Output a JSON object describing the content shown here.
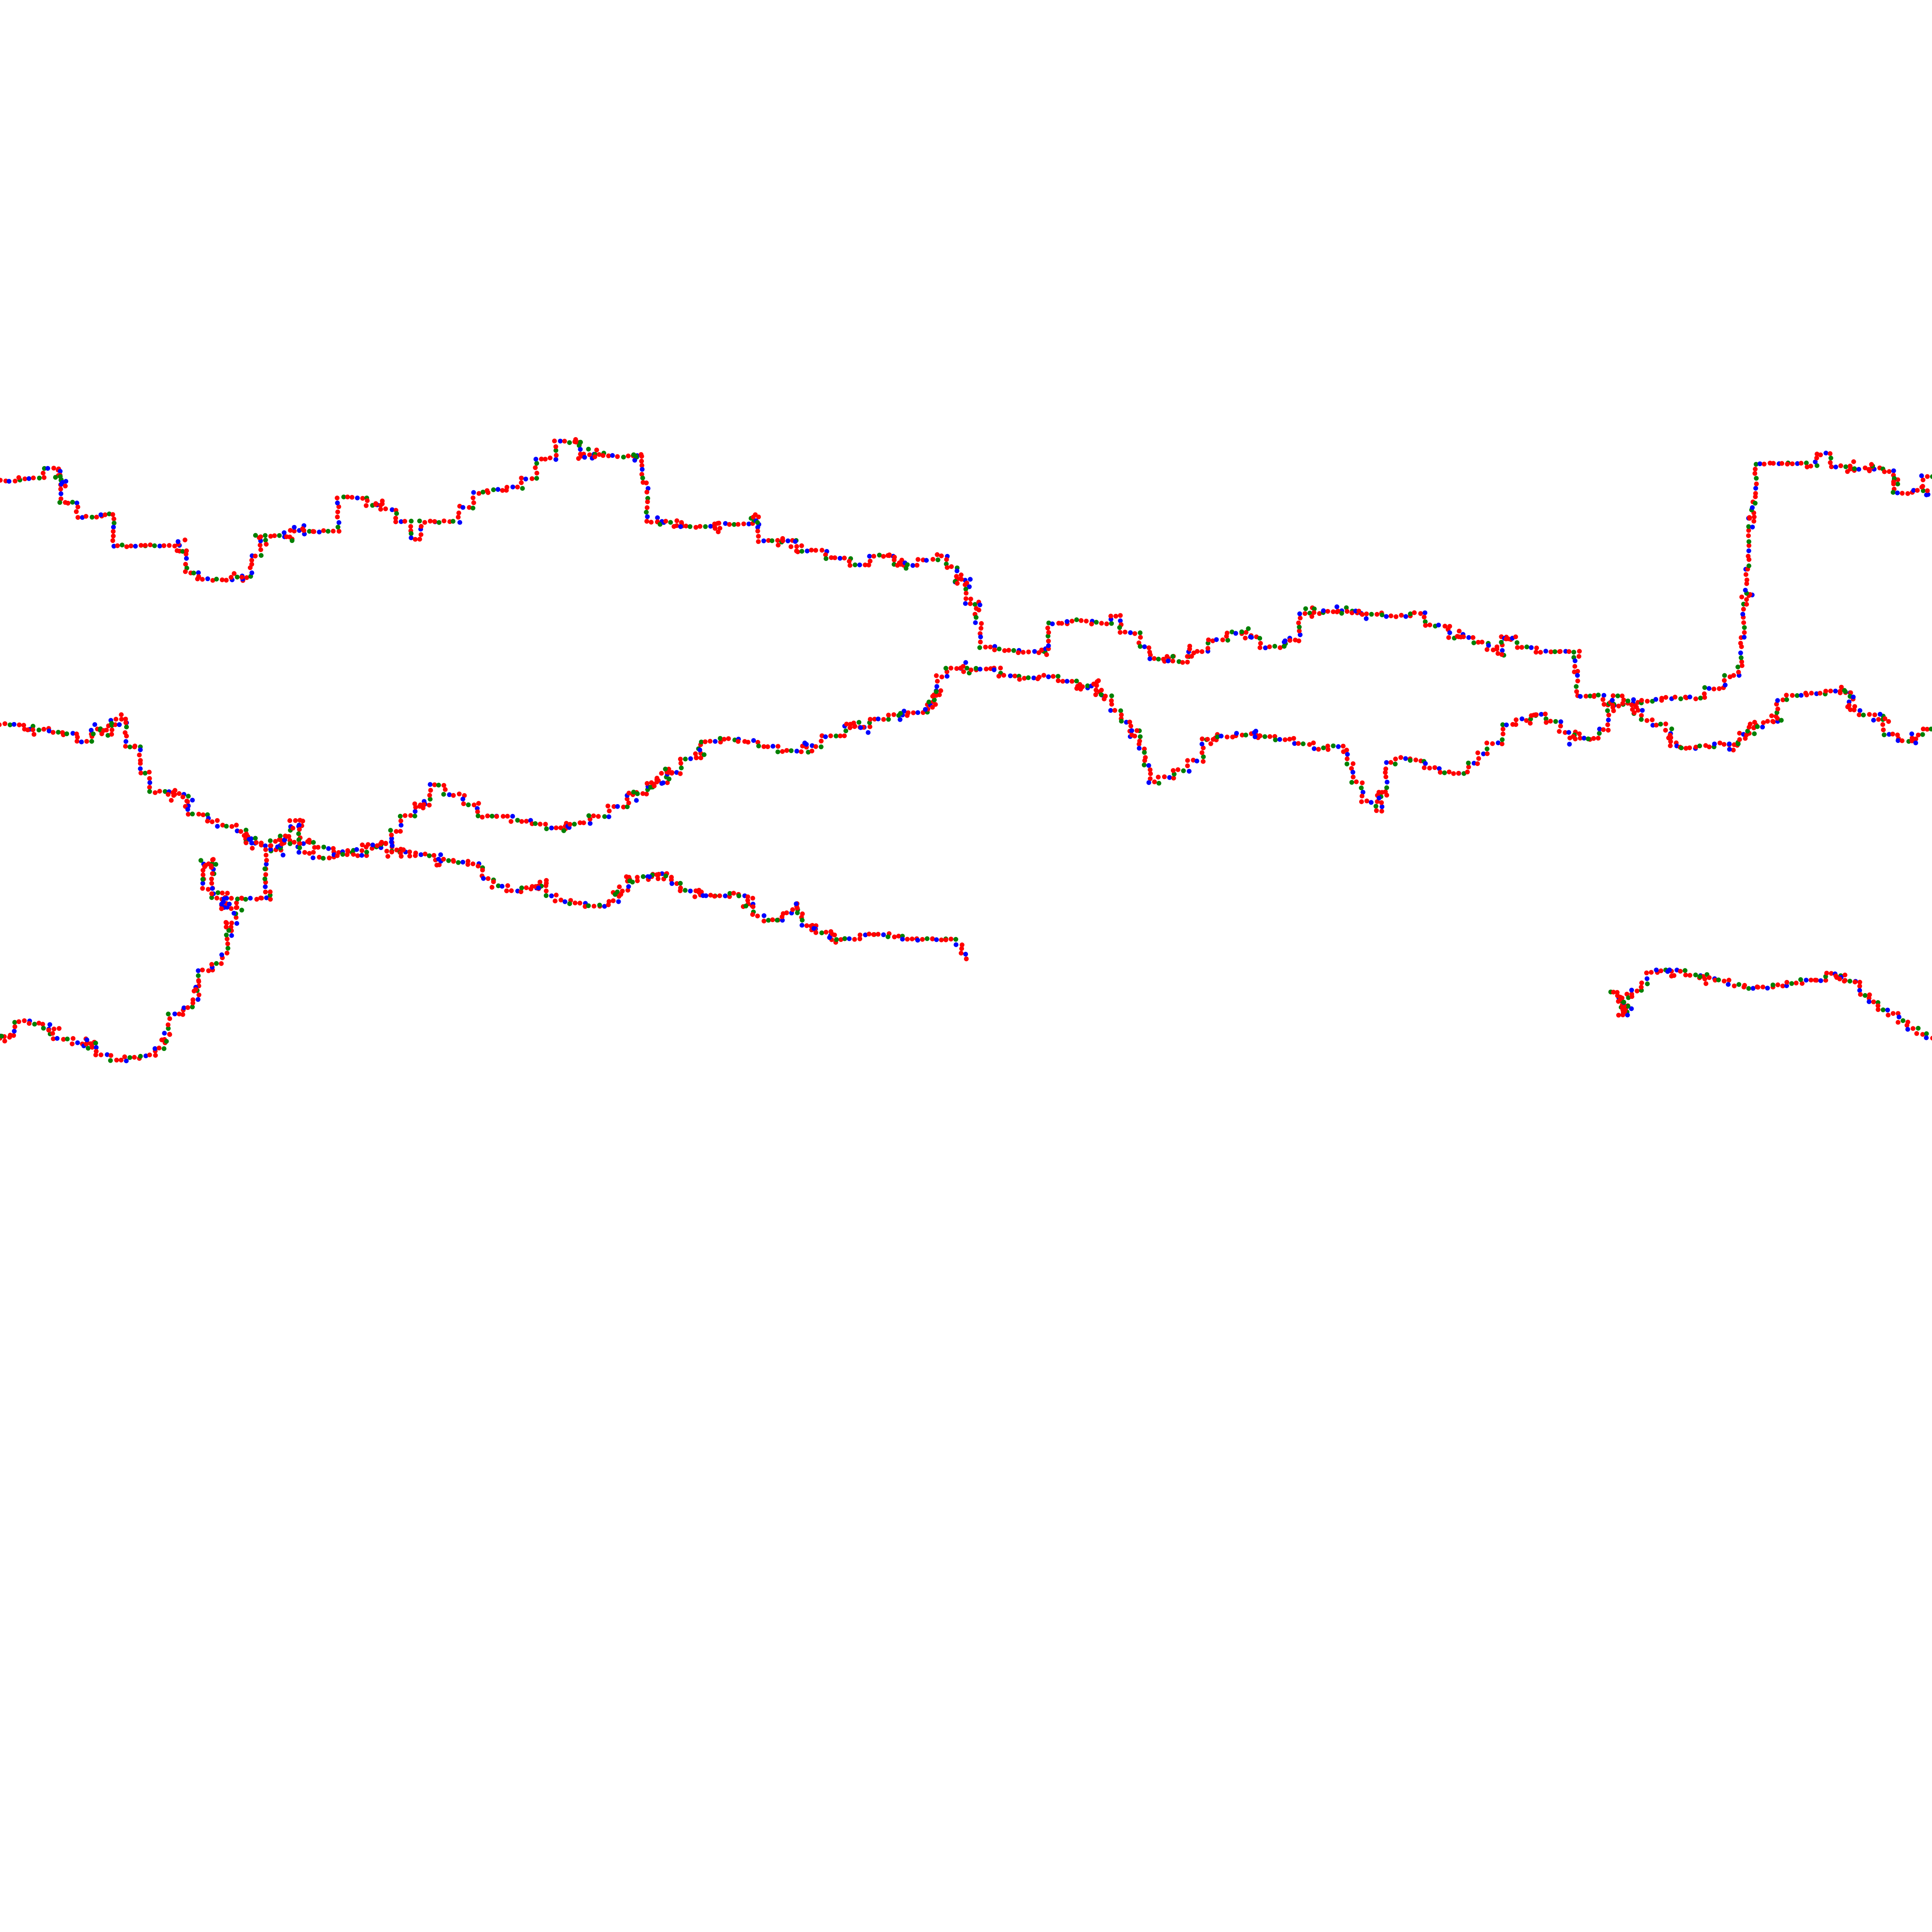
{
  "image": {
    "background": "#ffffff",
    "description_type": "random-walk trails drawn as colored dots"
  },
  "palette": {
    "red": "#ff0000",
    "blue": "#0000ff",
    "green": "#008000"
  },
  "color_sequence": [
    "red",
    "red",
    "blue",
    "red",
    "green",
    "red",
    "red",
    "blue",
    "red",
    "green",
    "red",
    "red",
    "green",
    "blue",
    "red"
  ],
  "trails": [
    {
      "id": "upper-trail"
    },
    {
      "id": "middle-left-trail"
    },
    {
      "id": "lower-left-trail"
    },
    {
      "id": "lower-right-trail"
    }
  ]
}
